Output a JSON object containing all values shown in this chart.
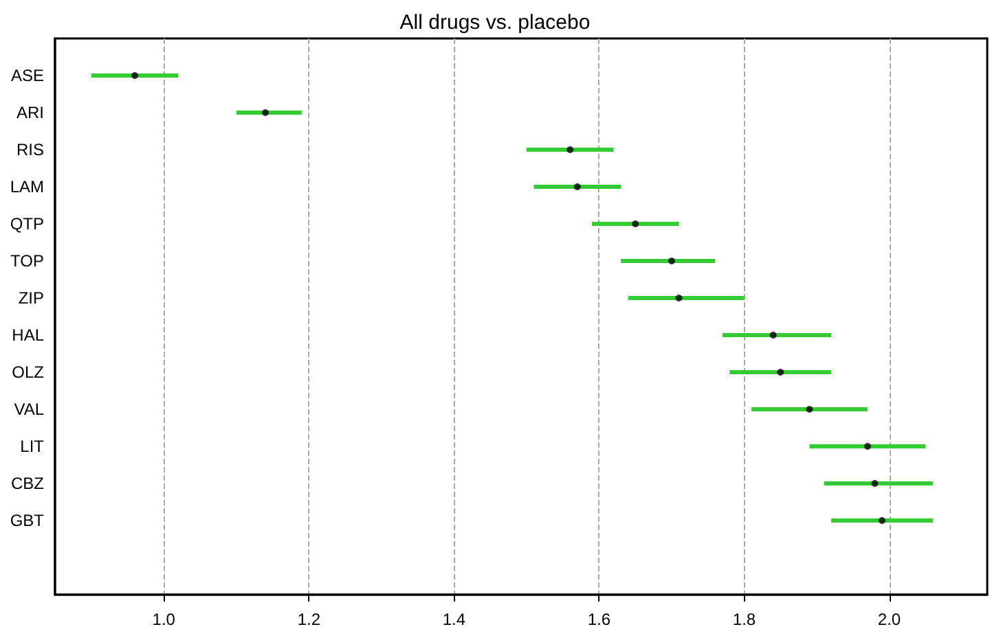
{
  "chart_data": {
    "type": "scatter",
    "title": "All drugs vs. placebo",
    "orientation": "horizontal",
    "categories": [
      "ASE",
      "ARI",
      "RIS",
      "LAM",
      "QTP",
      "TOP",
      "ZIP",
      "HAL",
      "OLZ",
      "VAL",
      "LIT",
      "CBZ",
      "GBT"
    ],
    "series": [
      {
        "type": "bar",
        "color": "#33cc33",
        "base": [
          0.9,
          1.1,
          1.5,
          1.51,
          1.59,
          1.63,
          1.64,
          1.77,
          1.78,
          1.81,
          1.89,
          1.91,
          1.92
        ],
        "values": [
          0.12,
          0.09,
          0.12,
          0.12,
          0.12,
          0.13,
          0.16,
          0.15,
          0.14,
          0.16,
          0.16,
          0.15,
          0.14
        ]
      },
      {
        "color": "#000000",
        "marker": "circle",
        "values": [
          0.96,
          1.14,
          1.56,
          1.57,
          1.65,
          1.7,
          1.71,
          1.84,
          1.85,
          1.89,
          1.97,
          1.98,
          1.99
        ]
      }
    ],
    "xlim": [
      0.85,
      2.135
    ],
    "xticks": [
      {
        "value": 1.0,
        "label": "1.0"
      },
      {
        "value": 1.2,
        "label": "1.2"
      },
      {
        "value": 1.4,
        "label": "1.4"
      },
      {
        "value": 1.6,
        "label": "1.6"
      },
      {
        "value": 1.8,
        "label": "1.8"
      },
      {
        "value": 2.0,
        "label": "2.0"
      }
    ],
    "grid": "x"
  }
}
